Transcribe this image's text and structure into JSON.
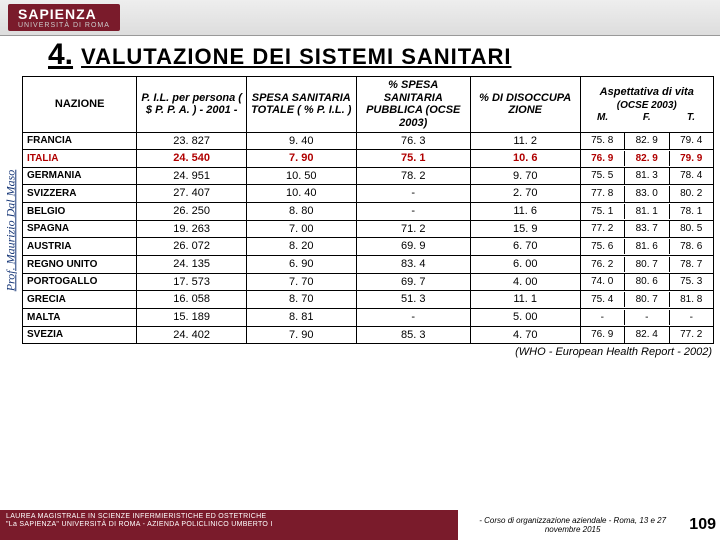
{
  "logo": {
    "main": "SAPIENZA",
    "sub": "UNIVERSITÀ DI ROMA"
  },
  "title": {
    "num": "4.",
    "text": "VALUTAZIONE  DEI  SISTEMI  SANITARI"
  },
  "side": "Prof. Maurizio  Dal Maso",
  "head": {
    "naz": "NAZIONE",
    "pil": "P. I.L.  per persona ( $  P. P. A. ) - 2001 -",
    "spesa": "SPESA SANITARIA TOTALE ( %  P. I.L. )",
    "pspesa": "%  SPESA SANITARIA PUBBLICA (OCSE  2003)",
    "dis": "%  DI DISOCCUPA ZIONE",
    "asp_top": "Aspettativa di vita",
    "asp_mid": "(OCSE  2003)",
    "asp_M": "M.",
    "asp_F": "F.",
    "asp_T": "T."
  },
  "rows": [
    {
      "n": "FRANCIA",
      "pil": "23. 827",
      "sp": "9. 40",
      "ps": "76. 3",
      "d": "11. 2",
      "m": "75. 8",
      "f": "82. 9",
      "t": "79. 4"
    },
    {
      "n": "ITALIA",
      "pil": "24. 540",
      "sp": "7. 90",
      "ps": "75. 1",
      "d": "10. 6",
      "m": "76. 9",
      "f": "82. 9",
      "t": "79. 9",
      "hi": true
    },
    {
      "n": "GERMANIA",
      "pil": "24. 951",
      "sp": "10. 50",
      "ps": "78. 2",
      "d": "9. 70",
      "m": "75. 5",
      "f": "81. 3",
      "t": "78. 4"
    },
    {
      "n": "SVIZZERA",
      "pil": "27. 407",
      "sp": "10. 40",
      "ps": "-",
      "d": "2. 70",
      "m": "77. 8",
      "f": "83. 0",
      "t": "80. 2"
    },
    {
      "n": "BELGIO",
      "pil": "26. 250",
      "sp": "8. 80",
      "ps": "-",
      "d": "11. 6",
      "m": "75. 1",
      "f": "81. 1",
      "t": "78. 1"
    },
    {
      "n": "SPAGNA",
      "pil": "19. 263",
      "sp": "7. 00",
      "ps": "71. 2",
      "d": "15. 9",
      "m": "77. 2",
      "f": "83. 7",
      "t": "80. 5"
    },
    {
      "n": "AUSTRIA",
      "pil": "26. 072",
      "sp": "8. 20",
      "ps": "69. 9",
      "d": "6. 70",
      "m": "75. 6",
      "f": "81. 6",
      "t": "78. 6"
    },
    {
      "n": "REGNO UNITO",
      "pil": "24. 135",
      "sp": "6. 90",
      "ps": "83. 4",
      "d": "6. 00",
      "m": "76. 2",
      "f": "80. 7",
      "t": "78. 7"
    },
    {
      "n": "PORTOGALLO",
      "pil": "17. 573",
      "sp": "7. 70",
      "ps": "69. 7",
      "d": "4. 00",
      "m": "74. 0",
      "f": "80. 6",
      "t": "75. 3"
    },
    {
      "n": "GRECIA",
      "pil": "16. 058",
      "sp": "8. 70",
      "ps": "51. 3",
      "d": "11. 1",
      "m": "75. 4",
      "f": "80. 7",
      "t": "81. 8"
    },
    {
      "n": "MALTA",
      "pil": "15. 189",
      "sp": "8. 81",
      "ps": "-",
      "d": "5. 00",
      "m": "-",
      "f": "-",
      "t": "-"
    },
    {
      "n": "SVEZIA",
      "pil": "24. 402",
      "sp": "7. 90",
      "ps": "85. 3",
      "d": "4. 70",
      "m": "76. 9",
      "f": "82. 4",
      "t": "77. 2"
    }
  ],
  "source": "(WHO  - European Health Report - 2002)",
  "footer": {
    "left1": "LAUREA  MAGISTRALE  IN   SCIENZE  INFERMIERISTICHE  ED  OSTETRICHE",
    "left2": "\"La SAPIENZA\" UNIVERSITÀ  DI  ROMA  -  AZIENDA  POLICLINICO  UMBERTO I",
    "right": "-  Corso  di  organizzazione  aziendale  - Roma,  13  e  27  novembre  2015",
    "page": "109"
  }
}
